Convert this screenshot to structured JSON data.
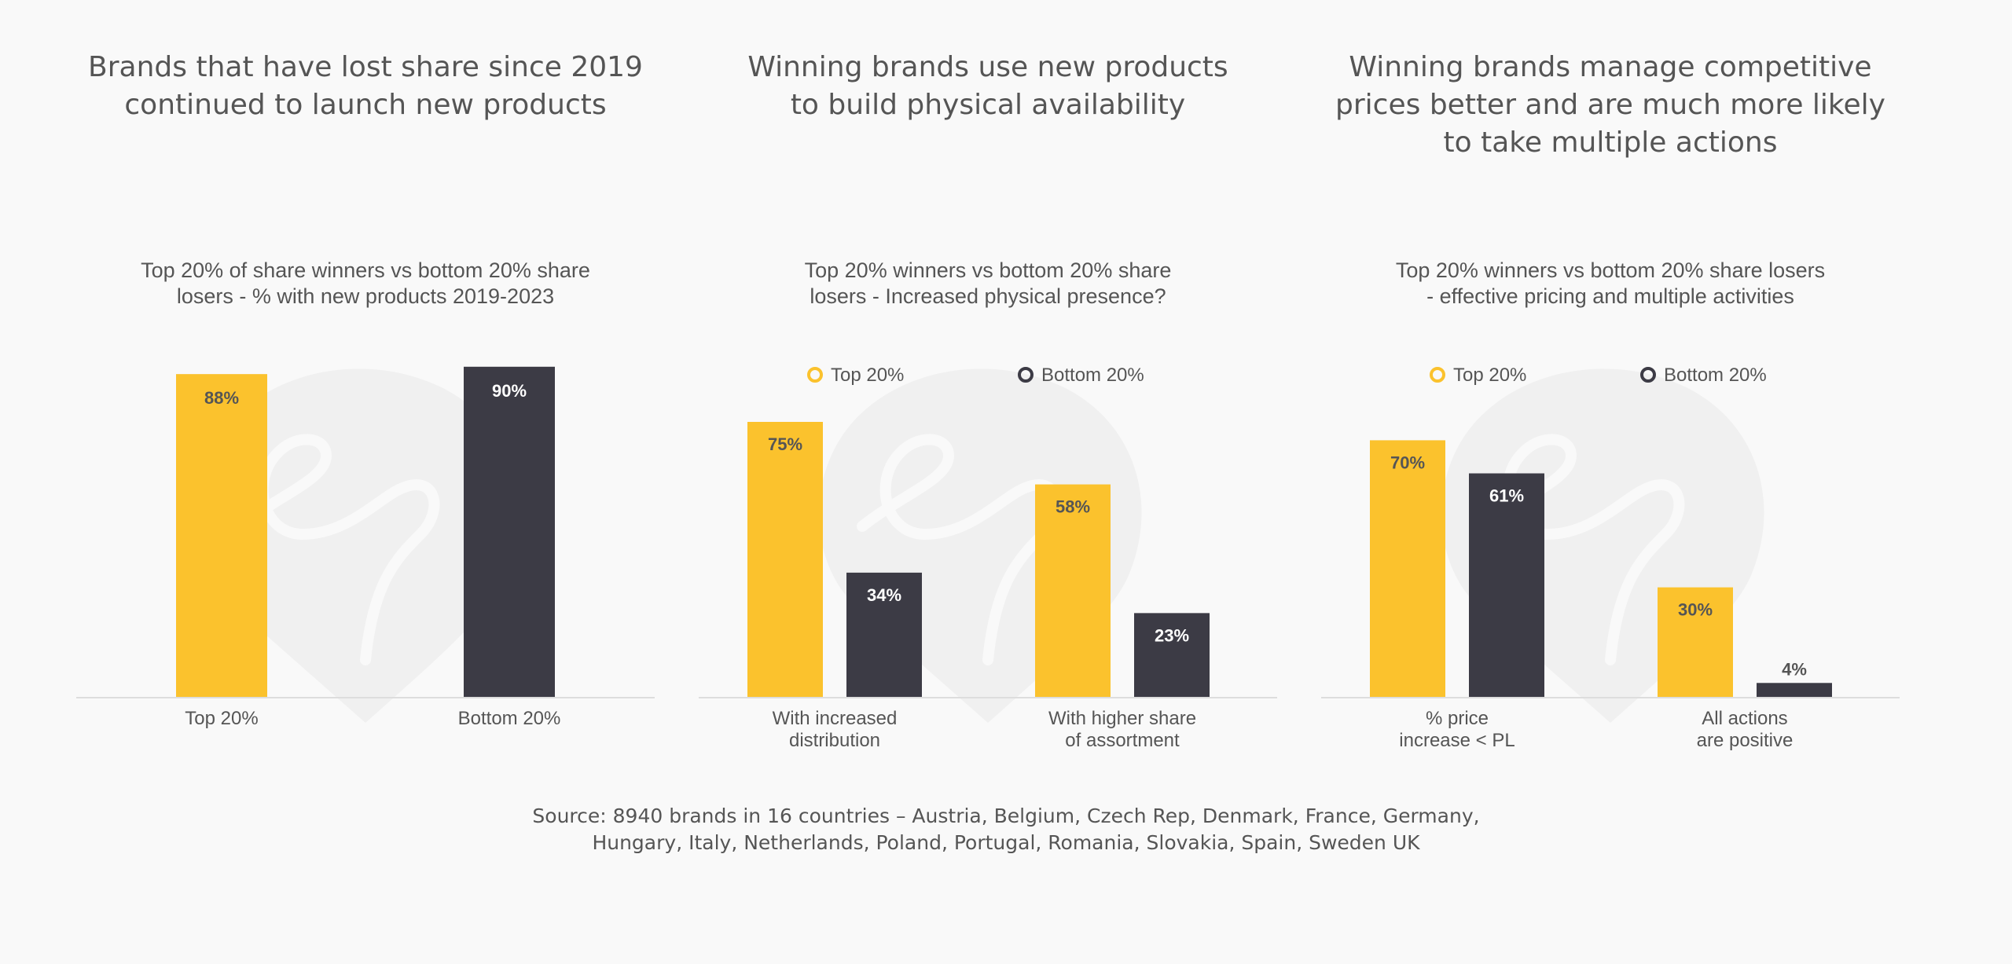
{
  "colors": {
    "top": "#fbc22d",
    "bottom": "#3c3b45",
    "text": "#555555",
    "axis": "#dddddd",
    "watermark": "#f0f0f0"
  },
  "panels": [
    {
      "title": "Brands that have lost share since 2019\ncontinued to launch new products",
      "subtitle": "Top 20% of share winners vs bottom 20% share\nlosers - % with new products 2019-2023"
    },
    {
      "title": "Winning brands use new products\nto build physical availability",
      "subtitle": "Top 20% winners vs bottom 20% share\nlosers - Increased physical presence?"
    },
    {
      "title": "Winning brands manage competitive\nprices better and are much more likely\nto take multiple actions",
      "subtitle": "Top 20% winners vs bottom 20% share losers\n- effective pricing and multiple activities"
    }
  ],
  "chart_data": [
    {
      "type": "bar",
      "categories": [
        "Top 20%",
        "Bottom 20%"
      ],
      "values": [
        88,
        90
      ],
      "data_labels": [
        "88%",
        "90%"
      ],
      "bar_colors": [
        "#fbc22d",
        "#3c3b45"
      ],
      "legend": null,
      "ylim": [
        0,
        100
      ],
      "grid": false
    },
    {
      "type": "bar",
      "categories": [
        "With increased\ndistribution",
        "With higher share\nof assortment"
      ],
      "legend": "top",
      "series": [
        {
          "name": "Top 20%",
          "color": "#fbc22d",
          "values": [
            75,
            58
          ],
          "data_labels": [
            "75%",
            "58%"
          ]
        },
        {
          "name": "Bottom 20%",
          "color": "#3c3b45",
          "values": [
            34,
            23
          ],
          "data_labels": [
            "34%",
            "23%"
          ]
        }
      ],
      "ylim": [
        0,
        100
      ],
      "grid": false
    },
    {
      "type": "bar",
      "categories": [
        "% price\nincrease < PL",
        "All actions\nare positive"
      ],
      "legend": "top",
      "series": [
        {
          "name": "Top 20%",
          "color": "#fbc22d",
          "values": [
            70,
            30
          ],
          "data_labels": [
            "70%",
            "30%"
          ]
        },
        {
          "name": "Bottom 20%",
          "color": "#3c3b45",
          "values": [
            61,
            4
          ],
          "data_labels": [
            "61%",
            "4%"
          ]
        }
      ],
      "ylim": [
        0,
        100
      ],
      "grid": false
    }
  ],
  "source": "Source: 8940 brands in 16 countries – Austria, Belgium, Czech Rep, Denmark, France, Germany,\nHungary, Italy, Netherlands, Poland, Portugal, Romania, Slovakia, Spain, Sweden UK"
}
